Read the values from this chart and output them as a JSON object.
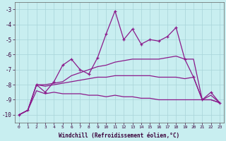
{
  "x": [
    0,
    1,
    2,
    3,
    4,
    5,
    6,
    7,
    8,
    9,
    10,
    11,
    12,
    13,
    14,
    15,
    16,
    17,
    18,
    19,
    20,
    21,
    22,
    23
  ],
  "line_jagged": [
    -10.0,
    -9.7,
    -8.0,
    -8.5,
    -7.8,
    -6.7,
    -6.3,
    -7.0,
    -7.3,
    -6.2,
    -4.6,
    -3.1,
    -5.0,
    -4.3,
    -5.3,
    -5.0,
    -5.1,
    -4.8,
    -4.2,
    -6.3,
    -7.5,
    -9.0,
    -8.5,
    -9.2
  ],
  "line_upper": [
    -10.0,
    -9.7,
    -8.0,
    -8.0,
    -7.9,
    -7.8,
    -7.4,
    -7.2,
    -7.0,
    -6.8,
    -6.7,
    -6.5,
    -6.4,
    -6.3,
    -6.3,
    -6.3,
    -6.3,
    -6.2,
    -6.1,
    -6.3,
    -6.3,
    -9.0,
    -9.0,
    -9.2
  ],
  "line_mid": [
    -10.0,
    -9.7,
    -8.0,
    -8.1,
    -8.0,
    -7.9,
    -7.8,
    -7.7,
    -7.6,
    -7.5,
    -7.5,
    -7.4,
    -7.4,
    -7.4,
    -7.4,
    -7.4,
    -7.5,
    -7.5,
    -7.5,
    -7.6,
    -7.5,
    -9.0,
    -9.0,
    -9.2
  ],
  "line_lower": [
    -10.0,
    -9.7,
    -8.4,
    -8.6,
    -8.5,
    -8.6,
    -8.6,
    -8.6,
    -8.7,
    -8.7,
    -8.8,
    -8.7,
    -8.8,
    -8.8,
    -8.9,
    -8.9,
    -9.0,
    -9.0,
    -9.0,
    -9.0,
    -9.0,
    -9.0,
    -8.7,
    -9.2
  ],
  "purple": "#8b1a8b",
  "bg_color": "#c8eef0",
  "grid_color": "#a8d4d8",
  "xlabel": "Windchill (Refroidissement éolien,°C)",
  "ylim": [
    -10.5,
    -2.5
  ],
  "xlim": [
    -0.5,
    23.5
  ],
  "yticks": [
    -10,
    -9,
    -8,
    -7,
    -6,
    -5,
    -4,
    -3
  ],
  "xticks": [
    0,
    1,
    2,
    3,
    4,
    5,
    6,
    7,
    8,
    9,
    10,
    11,
    12,
    13,
    14,
    15,
    16,
    17,
    18,
    19,
    20,
    21,
    22,
    23
  ]
}
